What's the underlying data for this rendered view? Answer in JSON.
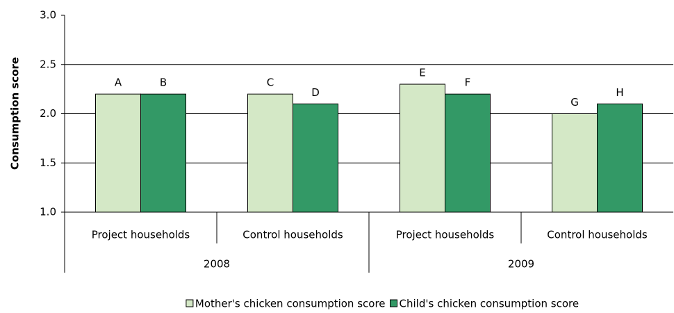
{
  "chart_data": {
    "type": "bar",
    "y_label": "Consumption score",
    "categories": [
      "Project households",
      "Control households",
      "Project households",
      "Control households"
    ],
    "group_labels": [
      "2008",
      "2009"
    ],
    "series": [
      {
        "name": "Mother's chicken consumption score",
        "color": "#d4e8c6",
        "values": [
          2.2,
          2.2,
          2.3,
          2.0
        ],
        "bar_labels": [
          "A",
          "C",
          "E",
          "G"
        ]
      },
      {
        "name": "Child's chicken consumption score",
        "color": "#339966",
        "values": [
          2.2,
          2.1,
          2.2,
          2.1
        ],
        "bar_labels": [
          "B",
          "D",
          "F",
          "H"
        ]
      }
    ],
    "ylim": [
      1.0,
      3.0
    ],
    "yticks": [
      {
        "value": 1.0,
        "label": "1.0"
      },
      {
        "value": 1.5,
        "label": "1.5"
      },
      {
        "value": 2.0,
        "label": "2.0"
      },
      {
        "value": 2.5,
        "label": "2.5"
      },
      {
        "value": 3.0,
        "label": "3.0"
      }
    ],
    "grid": true
  }
}
